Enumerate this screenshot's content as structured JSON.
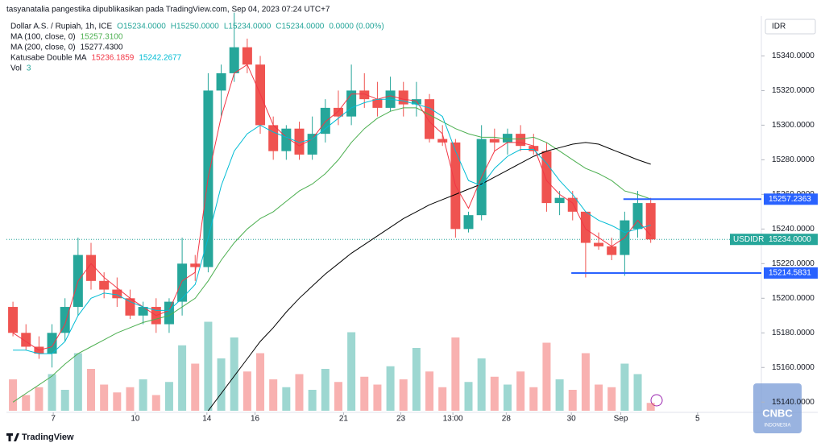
{
  "chart_data": {
    "type": "candlestick",
    "title": "tasyanatalia pangestika dipublikasikan pada TradingView.com, Sep 04, 2023 07:24 UTC+7",
    "symbol": "Dollar A.S. / Rupiah, 1h, ICE",
    "quote": [
      "O15234.0000",
      "H15250.0000",
      "L15234.0000",
      "C15234.0000",
      "0.0000 (0.00%)"
    ],
    "currency": "IDR",
    "brand": "TradingView",
    "watermark": [
      "CNBC",
      "INDONESIA"
    ],
    "x": [
      0.5,
      1.5,
      2.5,
      3.5,
      4.5,
      5.5,
      6.5,
      7.5,
      8.5,
      9.5,
      10.5,
      11.5,
      12.5,
      13.5,
      14.5,
      15.5,
      16.5,
      17.5,
      18.5,
      19.5,
      20.5,
      21.5,
      22.5,
      23.5,
      24.5,
      25.5,
      26.5,
      27.5,
      28.5,
      29.5,
      30.5,
      31.5,
      32.5,
      33.5,
      34.5,
      35.5,
      36.5,
      37.5,
      38.5,
      39.5,
      40.5,
      41.5,
      42.5,
      43.5,
      44.5,
      45.5,
      46.5,
      47.5,
      48.5,
      49.5
    ],
    "open": [
      15195,
      15180,
      15172,
      15168,
      15180,
      15195,
      15225,
      15210,
      15205,
      15200,
      15190,
      15195,
      15185,
      15198,
      15220,
      15218,
      15320,
      15330,
      15345,
      15335,
      15300,
      15285,
      15298,
      15283,
      15295,
      15310,
      15305,
      15320,
      15315,
      15310,
      15320,
      15312,
      15315,
      15292,
      15290,
      15240,
      15248,
      15292,
      15290,
      15295,
      15288,
      15285,
      15255,
      15258,
      15250,
      15232,
      15230,
      15225,
      15240,
      15255
    ],
    "high": [
      15198,
      15185,
      15178,
      15185,
      15200,
      15235,
      15232,
      15215,
      15212,
      15205,
      15198,
      15200,
      15200,
      15235,
      15225,
      15330,
      15335,
      15365,
      15350,
      15340,
      15305,
      15300,
      15302,
      15305,
      15315,
      15320,
      15335,
      15330,
      15325,
      15328,
      15325,
      15325,
      15318,
      15300,
      15292,
      15250,
      15300,
      15298,
      15298,
      15300,
      15295,
      15290,
      15262,
      15262,
      15250,
      15238,
      15235,
      15250,
      15262,
      15258
    ],
    "low": [
      15178,
      15170,
      15165,
      15160,
      15175,
      15190,
      15205,
      15200,
      15195,
      15188,
      15185,
      15180,
      15180,
      15190,
      15210,
      15215,
      15305,
      15325,
      15330,
      15295,
      15280,
      15280,
      15280,
      15280,
      15290,
      15300,
      15300,
      15310,
      15305,
      15308,
      15305,
      15305,
      15290,
      15288,
      15235,
      15238,
      15245,
      15285,
      15283,
      15285,
      15283,
      15250,
      15248,
      15245,
      15212,
      15228,
      15222,
      15213,
      15235,
      15232
    ],
    "close": [
      15180,
      15172,
      15168,
      15180,
      15195,
      15225,
      15210,
      15205,
      15200,
      15190,
      15195,
      15185,
      15198,
      15220,
      15218,
      15320,
      15330,
      15345,
      15335,
      15300,
      15285,
      15298,
      15283,
      15295,
      15310,
      15305,
      15320,
      15315,
      15310,
      15320,
      15312,
      15315,
      15292,
      15290,
      15240,
      15248,
      15292,
      15290,
      15295,
      15288,
      15285,
      15255,
      15258,
      15250,
      15232,
      15230,
      15225,
      15245,
      15255,
      15234
    ],
    "volume_title": "Vol",
    "volume_last": 3,
    "volume": [
      12,
      6,
      9,
      14,
      8,
      22,
      16,
      10,
      7,
      9,
      12,
      6,
      11,
      25,
      18,
      34,
      20,
      28,
      15,
      22,
      12,
      9,
      14,
      8,
      16,
      11,
      30,
      13,
      10,
      17,
      12,
      24,
      15,
      9,
      28,
      11,
      20,
      13,
      10,
      15,
      9,
      26,
      12,
      8,
      22,
      10,
      9,
      18,
      14,
      3
    ],
    "volume_lim": [
      0,
      40
    ],
    "indicators": [
      {
        "name": "MA (100, close, 0)",
        "lines": [
          {
            "color": "#4caf50",
            "last": 15257.31,
            "last_label": "15257.3100",
            "values": [
              15140,
              15145,
              15150,
              15155,
              15162,
              15168,
              15172,
              15176,
              15180,
              15183,
              15186,
              15188,
              15190,
              15195,
              15200,
              15210,
              15222,
              15232,
              15240,
              15246,
              15250,
              15256,
              15262,
              15266,
              15272,
              15280,
              15290,
              15298,
              15304,
              15308,
              15310,
              15310,
              15306,
              15302,
              15298,
              15295,
              15293,
              15293,
              15292,
              15292,
              15293,
              15290,
              15285,
              15280,
              15275,
              15272,
              15268,
              15262,
              15260,
              15257.31
            ]
          }
        ]
      },
      {
        "name": "MA (200, close, 0)",
        "lines": [
          {
            "color": "#000000",
            "last": 15277.43,
            "last_label": "15277.4300",
            "values": [
              null,
              null,
              null,
              null,
              null,
              null,
              null,
              null,
              null,
              null,
              null,
              null,
              null,
              null,
              null,
              15135,
              15145,
              15155,
              15165,
              15175,
              15183,
              15192,
              15200,
              15207,
              15214,
              15220,
              15226,
              15231,
              15236,
              15241,
              15246,
              15250,
              15254,
              15257,
              15260,
              15263,
              15266,
              15270,
              15274,
              15278,
              15282,
              15285,
              15287,
              15289,
              15290,
              15289,
              15286,
              15283,
              15280,
              15277.43
            ]
          }
        ]
      },
      {
        "name": "Katusabe Double MA",
        "lines": [
          {
            "color": "#f23645",
            "last": 15236.1859,
            "last_label": "15236.1859",
            "values": [
              15180,
              15175,
              15170,
              15172,
              15185,
              15210,
              15220,
              15212,
              15206,
              15200,
              15195,
              15190,
              15193,
              15210,
              15215,
              15270,
              15305,
              15330,
              15335,
              15318,
              15300,
              15293,
              15288,
              15292,
              15302,
              15308,
              15318,
              15318,
              15315,
              15317,
              15315,
              15314,
              15302,
              15295,
              15265,
              15252,
              15270,
              15285,
              15290,
              15290,
              15288,
              15268,
              15260,
              15255,
              15240,
              15235,
              15230,
              15235,
              15245,
              15236.1859
            ]
          },
          {
            "color": "#00bcd4",
            "last": 15242.2677,
            "last_label": "15242.2677",
            "values": [
              15170,
              15170,
              15168,
              15168,
              15175,
              15190,
              15200,
              15203,
              15202,
              15198,
              15195,
              15193,
              15193,
              15200,
              15208,
              15235,
              15265,
              15285,
              15295,
              15300,
              15296,
              15293,
              15290,
              15292,
              15298,
              15304,
              15310,
              15313,
              15315,
              15315,
              15314,
              15312,
              15310,
              15305,
              15285,
              15268,
              15265,
              15275,
              15282,
              15286,
              15286,
              15278,
              15268,
              15260,
              15250,
              15245,
              15242,
              15238,
              15240,
              15242.2677
            ]
          }
        ]
      }
    ],
    "levels": [
      {
        "value": 15257.2363,
        "label": "15257.2363",
        "x_start": 47.4
      },
      {
        "value": 15214.5831,
        "label": "15214.5831",
        "x_start": 43.4
      }
    ],
    "current": {
      "name": "USDIDR",
      "value": 15234,
      "label": "15234.0000"
    },
    "up_color": "#26a69a",
    "down_color": "#ef5350",
    "level_color": "#2962ff",
    "xlim": [
      0,
      58
    ],
    "xticks": [
      {
        "value": 3.6,
        "label": "7"
      },
      {
        "value": 9.9,
        "label": "10"
      },
      {
        "value": 15.4,
        "label": "14"
      },
      {
        "value": 19.1,
        "label": "16"
      },
      {
        "value": 25.9,
        "label": "21"
      },
      {
        "value": 30.3,
        "label": "23"
      },
      {
        "value": 34.3,
        "label": "13:00"
      },
      {
        "value": 38.4,
        "label": "28"
      },
      {
        "value": 43.4,
        "label": "30"
      },
      {
        "value": 47.2,
        "label": "Sep"
      },
      {
        "value": 53.1,
        "label": "5"
      }
    ],
    "ylim": [
      15135,
      15363
    ],
    "yticks": [
      {
        "value": 15140,
        "label": "15140.0000"
      },
      {
        "value": 15160,
        "label": "15160.0000"
      },
      {
        "value": 15180,
        "label": "15180.0000"
      },
      {
        "value": 15200,
        "label": "15200.0000"
      },
      {
        "value": 15220,
        "label": "15220.0000"
      },
      {
        "value": 15240,
        "label": "15240.0000"
      },
      {
        "value": 15260,
        "label": "15260.0000"
      },
      {
        "value": 15280,
        "label": "15280.0000"
      },
      {
        "value": 15300,
        "label": "15300.0000"
      },
      {
        "value": 15320,
        "label": "15320.0000"
      },
      {
        "value": 15340,
        "label": "15340.0000"
      }
    ],
    "grid": false
  }
}
